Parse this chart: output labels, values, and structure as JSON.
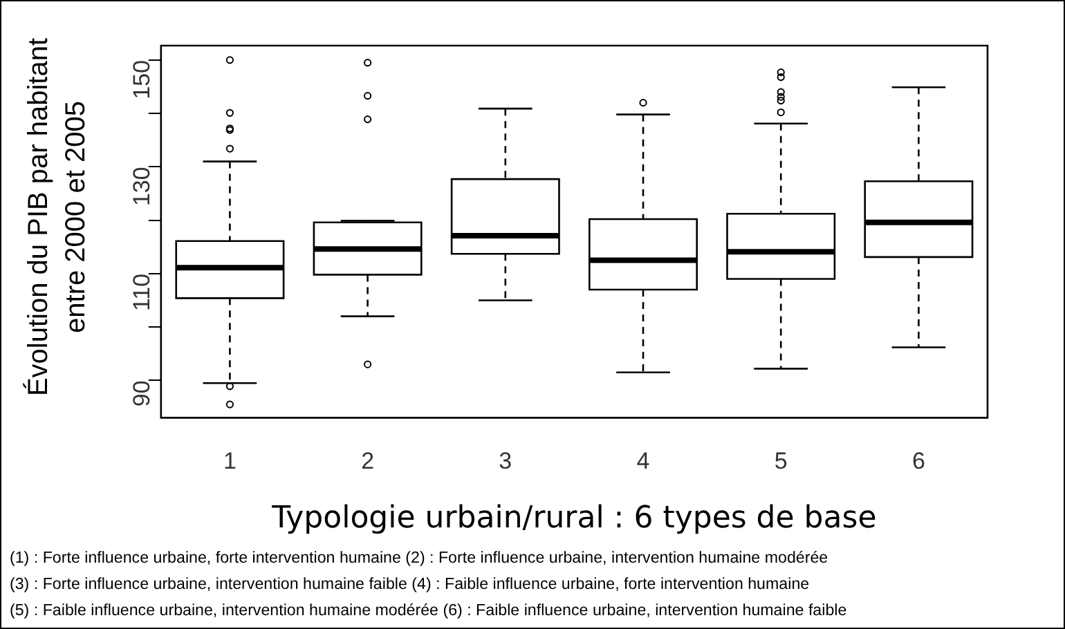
{
  "chart_data": {
    "type": "box",
    "xlabel": "Typologie urbain/rural : 6 types de base",
    "ylabel": "Évolution du PIB par habitant entre 2000 et 2005",
    "categories": [
      "1",
      "2",
      "3",
      "4",
      "5",
      "6"
    ],
    "boxes": [
      {
        "low": 89.5,
        "q1": 105.4,
        "median": 111.1,
        "q3": 116.1,
        "high": 131,
        "outliers": [
          150,
          140.1,
          137.2,
          136.9,
          133.4,
          88.9,
          85.5
        ]
      },
      {
        "low": 102,
        "q1": 109.8,
        "median": 114.6,
        "q3": 119.6,
        "high": 119.9,
        "outliers": [
          149.5,
          143.3,
          138.9,
          93
        ]
      },
      {
        "low": 105,
        "q1": 113.7,
        "median": 117.1,
        "q3": 127.7,
        "high": 140.9
      },
      {
        "low": 91.5,
        "q1": 107,
        "median": 112.5,
        "q3": 120.2,
        "high": 139.8,
        "outliers": [
          142
        ]
      },
      {
        "low": 92.2,
        "q1": 109,
        "median": 114.1,
        "q3": 121.2,
        "high": 138.1,
        "outliers": [
          147.7,
          146.8,
          144,
          143.1,
          142.4,
          140.2
        ]
      },
      {
        "low": 96.2,
        "q1": 113.1,
        "median": 119.6,
        "q3": 127.3,
        "high": 144.9
      }
    ],
    "ylim": [
      83,
      152.7
    ],
    "yticks": [
      90,
      {
        "value": 100,
        "label": null
      },
      110,
      {
        "value": 120,
        "label": null
      },
      130,
      {
        "value": 140,
        "label": null
      },
      150
    ],
    "annotations": [
      "(1) : Forte influence urbaine, forte intervention humaine (2) : Forte influence urbaine, intervention humaine modérée",
      "(3) : Forte influence urbaine, intervention humaine faible (4) : Faible influence urbaine, forte intervention humaine",
      "(5) : Faible influence urbaine, intervention humaine modérée (6) : Faible influence urbaine, intervention humaine faible"
    ]
  }
}
